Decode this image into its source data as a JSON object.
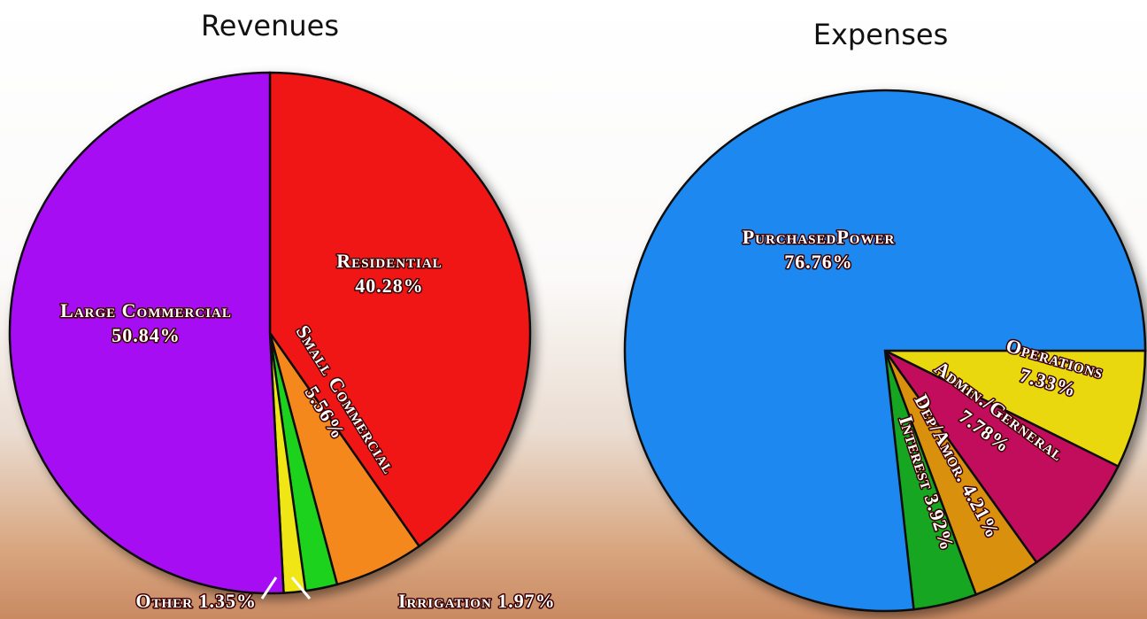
{
  "chart_data": [
    {
      "type": "pie",
      "title": "Revenues",
      "categories": [
        "Residential",
        "Small Commercial",
        "Irrigation",
        "Other",
        "Large Commercial"
      ],
      "values": [
        40.28,
        5.56,
        1.97,
        1.35,
        50.84
      ],
      "value_labels": [
        "40.28%",
        "5.56%",
        "1.97%",
        "1.35%",
        "50.84%"
      ],
      "colors": [
        "#f01414",
        "#f5881e",
        "#1ed21e",
        "#f0e614",
        "#a60ff2"
      ]
    },
    {
      "type": "pie",
      "title": "Expenses",
      "categories": [
        "Operations",
        "Admin./Gerneral",
        "Dep/Amor.",
        "Interest",
        "PurchasedPower"
      ],
      "values": [
        7.33,
        7.78,
        4.21,
        3.92,
        76.76
      ],
      "value_labels": [
        "7.33%",
        "7.78%",
        "4.21%",
        "3.92%",
        "76.76%"
      ],
      "colors": [
        "#e8d80a",
        "#c2105c",
        "#d8900e",
        "#12a624",
        "#1a88f0"
      ]
    }
  ]
}
